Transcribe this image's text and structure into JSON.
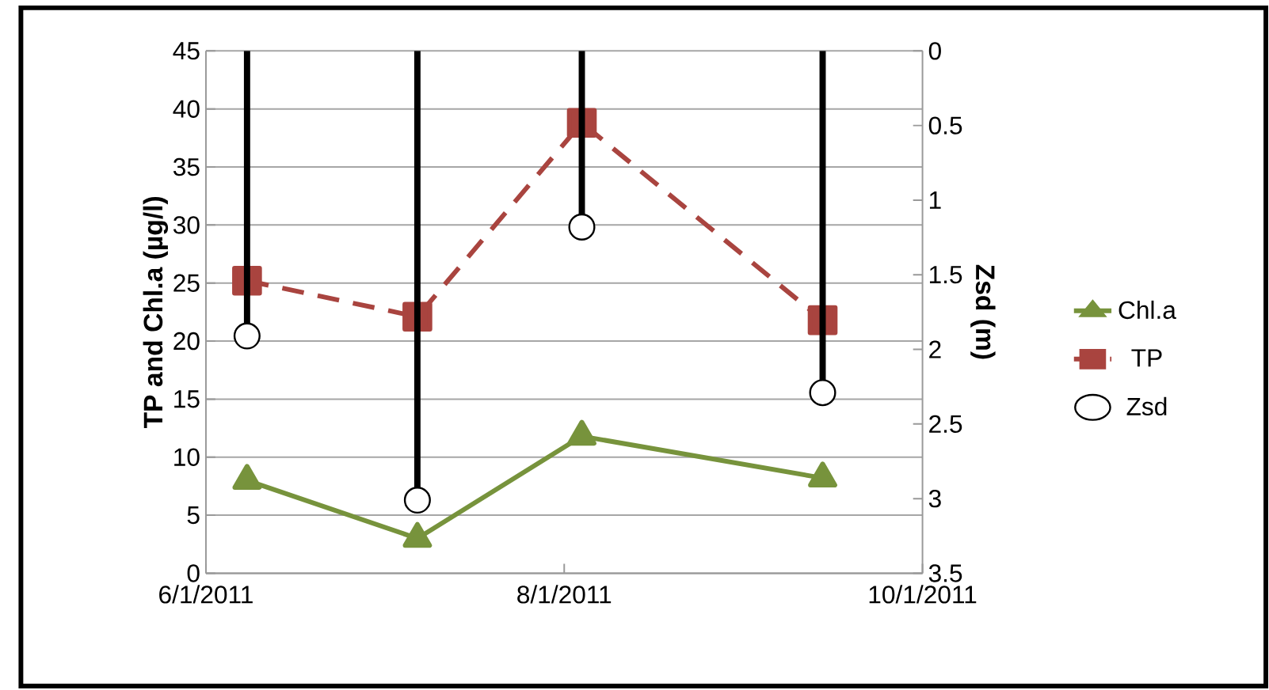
{
  "chart_data": {
    "type": "line",
    "xlabel": null,
    "ylabel": "TP and Chl.a (µg/l)",
    "y2label": "Zsd (m)",
    "x": [
      "2011-06-08",
      "2011-07-07",
      "2011-08-04",
      "2011-09-14"
    ],
    "xlim": [
      "2011-06-01",
      "2011-10-01"
    ],
    "xticks": [
      {
        "value": "2011-06-01",
        "label": "6/1/2011"
      },
      {
        "value": "2011-08-01",
        "label": "8/1/2011"
      },
      {
        "value": "2011-10-01",
        "label": "10/1/2011"
      }
    ],
    "ylim": [
      0,
      45
    ],
    "yticks": [
      0,
      5,
      10,
      15,
      20,
      25,
      30,
      35,
      40,
      45
    ],
    "y2lim": [
      3.5,
      0
    ],
    "y2ticks": [
      0,
      0.5,
      1,
      1.5,
      2,
      2.5,
      3,
      3.5
    ],
    "grid": "y",
    "legend": "right",
    "series": [
      {
        "name": "Chl.a",
        "color": "#77933c",
        "marker": "triangle",
        "line_style": "solid",
        "values": [
          8,
          3,
          11.8,
          8.2
        ]
      },
      {
        "name": "TP",
        "color": "#a9443f",
        "marker": "square",
        "line_style": "dashed",
        "values": [
          25.2,
          22.1,
          38.8,
          21.8
        ]
      },
      {
        "name": "Zsd",
        "type": "lollipop",
        "axis": "y2",
        "color": "#000000",
        "marker": "circle",
        "values": [
          1.91,
          3.01,
          1.18,
          2.29
        ]
      }
    ]
  }
}
